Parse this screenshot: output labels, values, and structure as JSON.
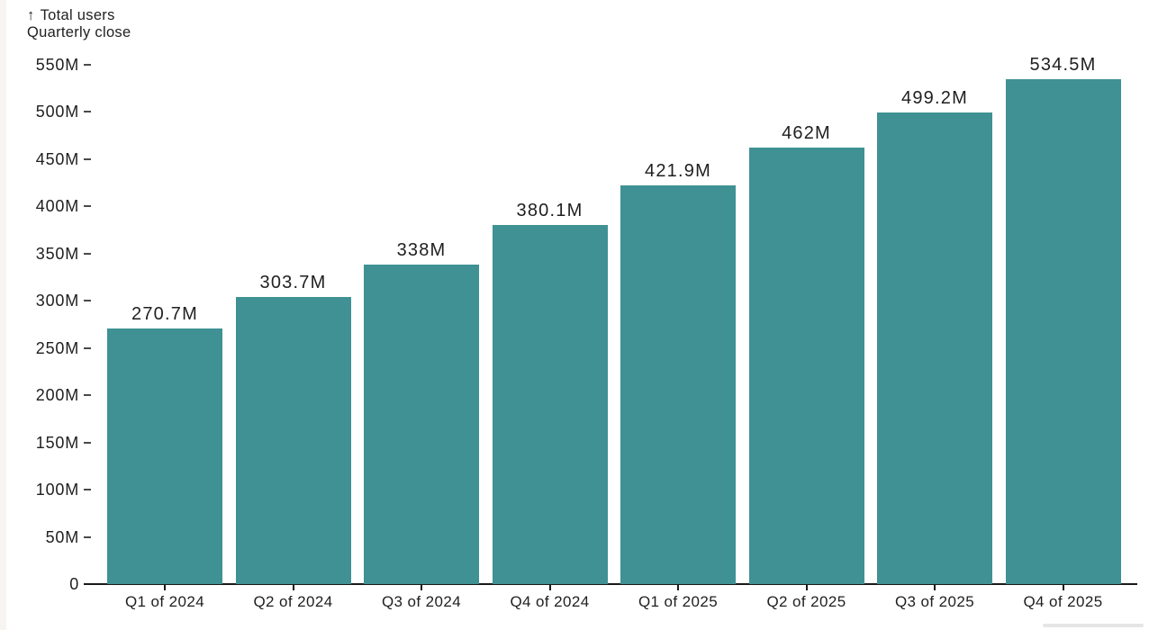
{
  "header": {
    "arrow_icon": "↑",
    "title": "Total users",
    "subtitle": "Quarterly close"
  },
  "chart_data": {
    "type": "bar",
    "title": "Total users",
    "subtitle": "Quarterly close",
    "ylabel": "Total users",
    "xlabel": "",
    "categories": [
      "Q1 of 2024",
      "Q2 of 2024",
      "Q3 of 2024",
      "Q4 of 2024",
      "Q1 of 2025",
      "Q2 of 2025",
      "Q3 of 2025",
      "Q4 of 2025"
    ],
    "values": [
      270.7,
      303.7,
      338,
      380.1,
      421.9,
      462,
      499.2,
      534.5
    ],
    "value_labels": [
      "270.7M",
      "303.7M",
      "338M",
      "380.1M",
      "421.9M",
      "462M",
      "499.2M",
      "534.5M"
    ],
    "unit": "M",
    "ylim": [
      0,
      550
    ],
    "ytick_step": 50,
    "yticks": [
      {
        "value": 550,
        "label": "550M"
      },
      {
        "value": 500,
        "label": "500M"
      },
      {
        "value": 450,
        "label": "450M"
      },
      {
        "value": 400,
        "label": "400M"
      },
      {
        "value": 350,
        "label": "350M"
      },
      {
        "value": 300,
        "label": "300M"
      },
      {
        "value": 250,
        "label": "250M"
      },
      {
        "value": 200,
        "label": "200M"
      },
      {
        "value": 150,
        "label": "150M"
      },
      {
        "value": 100,
        "label": "100M"
      },
      {
        "value": 50,
        "label": "50M"
      },
      {
        "value": 0,
        "label": "0"
      }
    ],
    "grid": false,
    "legend_position": "none",
    "colors": {
      "bar": "#3f9193",
      "text": "#1f1f1f",
      "axis": "#1a1a1a",
      "tick_dash": "#4a4a4a"
    }
  }
}
